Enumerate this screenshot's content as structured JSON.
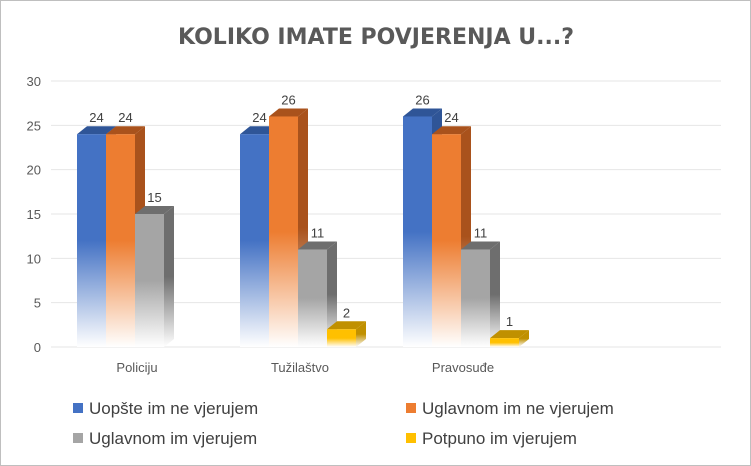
{
  "chart_data": {
    "type": "bar",
    "title": "KOLIKO IMATE POVJERENJA U...?",
    "xlabel": "",
    "ylabel": "",
    "ylim": [
      0,
      30
    ],
    "yticks": [
      0,
      5,
      10,
      15,
      20,
      25,
      30
    ],
    "grid": true,
    "legend_position": "bottom",
    "categories": [
      "Policiju",
      "Tužilaštvo",
      "Pravosuđe"
    ],
    "series": [
      {
        "name": "Uopšte im ne vjerujem",
        "color": "#4472c4",
        "side": "#2f5597",
        "values": [
          24,
          24,
          26
        ]
      },
      {
        "name": "Uglavnom im ne vjerujem",
        "color": "#ed7d31",
        "side": "#a9521c",
        "values": [
          24,
          26,
          24
        ]
      },
      {
        "name": "Uglavnom im vjerujem",
        "color": "#a5a5a5",
        "side": "#6e6e6e",
        "values": [
          15,
          11,
          11
        ]
      },
      {
        "name": "Potpuno im vjerujem",
        "color": "#ffc000",
        "side": "#c09000",
        "values": [
          null,
          2,
          1
        ]
      }
    ]
  }
}
